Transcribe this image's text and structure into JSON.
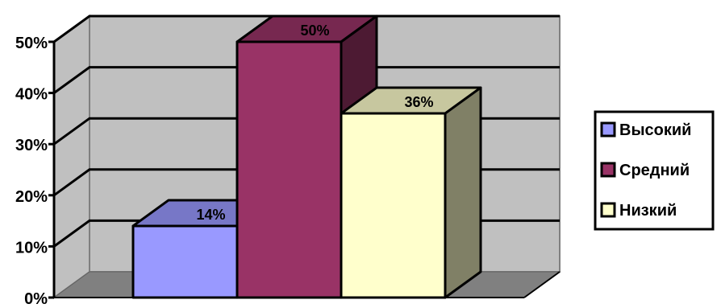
{
  "chart_data": {
    "type": "bar",
    "title": "",
    "xlabel": "",
    "ylabel": "",
    "ylim": [
      0,
      50
    ],
    "y_ticks": [
      "0%",
      "10%",
      "20%",
      "30%",
      "40%",
      "50%"
    ],
    "grid": true,
    "legend_position": "right",
    "three_d": true,
    "series": [
      {
        "name": "Высокий",
        "value": 14,
        "label": "14%",
        "color": "#9999ff"
      },
      {
        "name": "Средний",
        "value": 50,
        "label": "50%",
        "color": "#993366"
      },
      {
        "name": "Низкий",
        "value": 36,
        "label": "36%",
        "color": "#ffffcc"
      }
    ],
    "colors": {
      "wall": "#c0c0c0",
      "floor": "#808080",
      "gridline": "#000000"
    }
  }
}
